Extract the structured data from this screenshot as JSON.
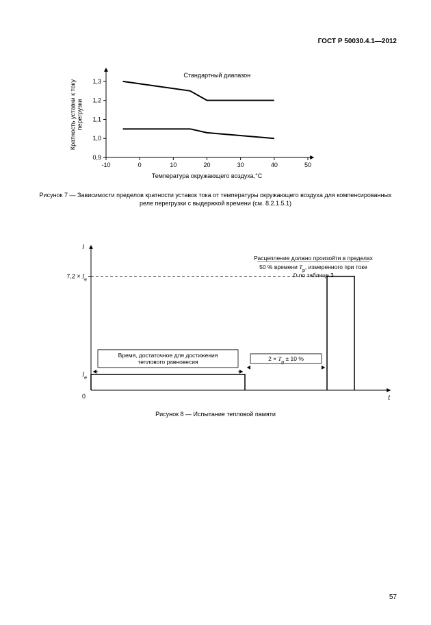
{
  "header": {
    "standard": "ГОСТ Р 50030.4.1—2012"
  },
  "page_number": "57",
  "fig7": {
    "type": "line",
    "title_top": "Стандартный диапазон",
    "xlabel": "Температура окружающего воздуха,°C",
    "ylabel": "Кратность уставки к току перегрузки",
    "x_ticks": [
      "-10",
      "0",
      "10",
      "20",
      "30",
      "40",
      "50"
    ],
    "y_ticks": [
      "0,9",
      "1,0",
      "1,1",
      "1,2",
      "1,3"
    ],
    "xlim": [
      -10,
      50
    ],
    "ylim": [
      0.9,
      1.35
    ],
    "series": [
      {
        "name": "upper",
        "x": [
          -5,
          15,
          20,
          40
        ],
        "y": [
          1.3,
          1.25,
          1.2,
          1.2
        ],
        "color": "#000000",
        "width": 2
      },
      {
        "name": "lower",
        "x": [
          -5,
          15,
          20,
          40
        ],
        "y": [
          1.05,
          1.05,
          1.03,
          1.0
        ],
        "color": "#000000",
        "width": 2
      }
    ],
    "axis_color": "#000000",
    "tick_len": 4,
    "label_fontsize": 9,
    "caption": "Рисунок 7 — Зависимости пределов кратности уставок тока от температуры окружающего воздуха для компенсированных реле перегрузки с выдержкой времени (см. 8.2.1.5.1)"
  },
  "fig8": {
    "type": "step",
    "y_axis_label": "I",
    "x_axis_label": "t",
    "y_ticks": [
      {
        "label_parts": [
          "7,2 × ",
          "I",
          "e"
        ],
        "v": 7.2
      },
      {
        "label_parts": [
          "I",
          "e"
        ],
        "v": 1.0
      }
    ],
    "origin_label": "0",
    "box1_label": "Время, достаточное для достижения теплового равновесия",
    "box2_label_parts": [
      "2 × ",
      "T",
      "p",
      " ± 10 %"
    ],
    "top_text": {
      "line1": "Расцепление должно произойти в пределах",
      "line2_parts": [
        "50 % времени ",
        "T",
        "p",
        ", измеренного при токе"
      ],
      "line3_parts": [
        "D",
        " по таблице 3"
      ]
    },
    "geometry": {
      "seg1_x": [
        0,
        225
      ],
      "seg1_y": 1.0,
      "seg2_x": [
        225,
        345
      ],
      "seg2_y": 0,
      "seg3_x": [
        345,
        385
      ],
      "seg3_y": 7.2,
      "y_max": 9.0,
      "x_max": 490
    },
    "axis_color": "#000000",
    "line_width": 1.5,
    "label_fontsize": 9,
    "caption": "Рисунок 8 — Испытание тепловой памяти"
  }
}
